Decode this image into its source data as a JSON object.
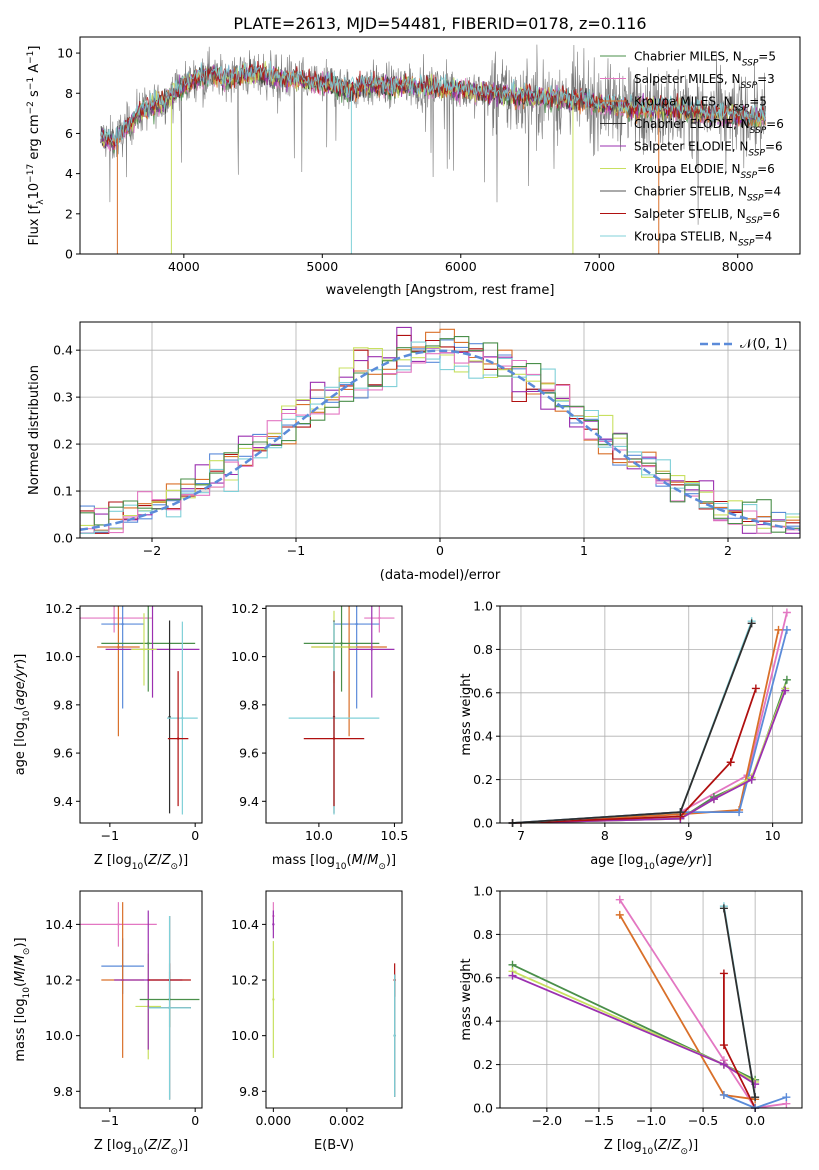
{
  "title": "PLATE=2613, MJD=54481, FIBERID=0178, z=0.116",
  "colors": {
    "chab_miles": "#4a8f4a",
    "salp_miles": "#e377c2",
    "krou_miles": "#d9702a",
    "chab_elodie": "#2f2f2f",
    "salp_elodie": "#9b30b0",
    "krou_elodie": "#c8e060",
    "chab_stelib": "#555555",
    "salp_stelib": "#b01010",
    "krou_stelib": "#80d0d8",
    "blue": "#5b8bd9"
  },
  "chart_data": [
    {
      "id": "spectrum",
      "type": "line",
      "xlabel": "wavelength [Angstrom, rest frame]",
      "ylabel": "Flux [f_λ 10^-17 erg cm^-2 s^-1 A^-1]",
      "xlim": [
        3250,
        8450
      ],
      "ylim": [
        0,
        10.8
      ],
      "xticks": [
        "4000",
        "5000",
        "6000",
        "7000",
        "8000"
      ],
      "yticks": [
        "0",
        "2",
        "4",
        "6",
        "8",
        "10"
      ],
      "grid": false,
      "legend": "top-right",
      "series": [
        {
          "key": "chab_miles",
          "name": "Chabrier MILES, N_SSP=5"
        },
        {
          "key": "salp_miles",
          "name": "Salpeter MILES, N_SSP=3"
        },
        {
          "key": "krou_miles",
          "name": "Kroupa MILES, N_SSP=5"
        },
        {
          "key": "chab_elodie",
          "name": "Chabrier ELODIE, N_SSP=6"
        },
        {
          "key": "salp_elodie",
          "name": "Salpeter ELODIE, N_SSP=6"
        },
        {
          "key": "krou_elodie",
          "name": "Kroupa ELODIE, N_SSP=6"
        },
        {
          "key": "chab_stelib",
          "name": "Chabrier STELIB, N_SSP=4"
        },
        {
          "key": "salp_stelib",
          "name": "Salpeter STELIB, N_SSP=6"
        },
        {
          "key": "krou_stelib",
          "name": "Kroupa STELIB, N_SSP=4"
        }
      ],
      "continuum": [
        [
          3400,
          5.8
        ],
        [
          3500,
          5.6
        ],
        [
          3600,
          6.4
        ],
        [
          3700,
          7.2
        ],
        [
          3800,
          7.4
        ],
        [
          3900,
          7.8
        ],
        [
          4000,
          8.4
        ],
        [
          4100,
          8.8
        ],
        [
          4200,
          9.0
        ],
        [
          4300,
          8.7
        ],
        [
          4400,
          8.9
        ],
        [
          4500,
          9.0
        ],
        [
          4600,
          8.9
        ],
        [
          4700,
          8.7
        ],
        [
          4800,
          8.8
        ],
        [
          4900,
          8.5
        ],
        [
          5000,
          8.5
        ],
        [
          5100,
          8.4
        ],
        [
          5200,
          8.1
        ],
        [
          5300,
          8.4
        ],
        [
          5400,
          8.4
        ],
        [
          5500,
          8.3
        ],
        [
          5600,
          8.4
        ],
        [
          5800,
          8.3
        ],
        [
          6000,
          8.2
        ],
        [
          6200,
          8.0
        ],
        [
          6400,
          7.9
        ],
        [
          6600,
          7.8
        ],
        [
          6800,
          7.7
        ],
        [
          7000,
          7.5
        ],
        [
          7200,
          7.3
        ],
        [
          7400,
          7.3
        ],
        [
          7600,
          7.2
        ],
        [
          7800,
          7.0
        ],
        [
          8000,
          6.9
        ],
        [
          8200,
          6.8
        ]
      ],
      "dips": [
        {
          "x": 3520,
          "to": 0,
          "key": "krou_miles"
        },
        {
          "x": 3910,
          "to": 0,
          "key": "krou_elodie"
        },
        {
          "x": 5210,
          "to": 0,
          "key": "krou_stelib"
        },
        {
          "x": 6810,
          "to": 0,
          "key": "krou_elodie"
        },
        {
          "x": 7430,
          "to": 0,
          "key": "krou_miles"
        }
      ]
    },
    {
      "id": "residuals",
      "type": "histogram",
      "xlabel": "(data-model)/error",
      "ylabel": "Normed distribution",
      "xlim": [
        -2.5,
        2.5
      ],
      "ylim": [
        0,
        0.46
      ],
      "xticks": [
        "−2",
        "−1",
        "0",
        "1",
        "2"
      ],
      "yticks": [
        "0.0",
        "0.1",
        "0.2",
        "0.3",
        "0.4"
      ],
      "grid": true,
      "legend": "top-right",
      "legend_label": "𝒩(0, 1)",
      "bin_width": 0.1,
      "series_keys": [
        "blue",
        "krou_miles",
        "salp_stelib",
        "salp_elodie",
        "krou_elodie",
        "krou_stelib",
        "salp_miles",
        "chab_miles"
      ]
    },
    {
      "id": "age_vs_Z",
      "type": "scatter",
      "xlabel": "Z [log10(Z/Z⊙)]",
      "ylabel": "age  [log10(age/yr)]",
      "xlim": [
        -1.35,
        0.08
      ],
      "ylim": [
        9.31,
        10.21
      ],
      "xticks": [
        {
          "v": -1,
          "t": "−1"
        },
        {
          "v": 0,
          "t": "0"
        }
      ],
      "yticks": [
        {
          "v": 9.4,
          "t": "9.4"
        },
        {
          "v": 9.6,
          "t": "9.6"
        },
        {
          "v": 9.8,
          "t": "9.8"
        },
        {
          "v": 10.0,
          "t": "10.0"
        },
        {
          "v": 10.2,
          "t": "10.2"
        }
      ],
      "points": [
        {
          "key": "salp_miles",
          "x": -0.95,
          "y": 10.16,
          "ex": 0.45,
          "ey": 0.06
        },
        {
          "key": "blue",
          "x": -0.85,
          "y": 10.135,
          "ex": 0.25,
          "ey": 0.35
        },
        {
          "key": "krou_miles",
          "x": -0.9,
          "y": 10.04,
          "ex": 0.25,
          "ey": 0.37
        },
        {
          "key": "chab_miles",
          "x": -0.55,
          "y": 10.055,
          "ex": 0.55,
          "ey": 0.2
        },
        {
          "key": "salp_elodie",
          "x": -0.5,
          "y": 10.03,
          "ex": 0.55,
          "ey": 0.2
        },
        {
          "key": "krou_elodie",
          "x": -0.6,
          "y": 10.03,
          "ex": 0.15,
          "ey": 0.15
        },
        {
          "key": "chab_elodie",
          "x": -0.3,
          "y": 9.75,
          "ex": 0.0,
          "ey": 0.4
        },
        {
          "key": "krou_stelib",
          "x": -0.15,
          "y": 9.745,
          "ex": 0.18,
          "ey": 0.4
        },
        {
          "key": "salp_stelib",
          "x": -0.2,
          "y": 9.66,
          "ex": 0.12,
          "ey": 0.28
        }
      ]
    },
    {
      "id": "age_vs_mass",
      "type": "scatter",
      "xlabel": "mass [log10(M/M⊙)]",
      "ylabel": "",
      "xlim": [
        9.65,
        10.55
      ],
      "ylim": [
        9.31,
        10.21
      ],
      "xticks": [
        {
          "v": 10.0,
          "t": "10.0"
        },
        {
          "v": 10.5,
          "t": "10.5"
        }
      ],
      "yticks": [
        {
          "v": 9.4,
          "t": "9.4"
        },
        {
          "v": 9.6,
          "t": "9.6"
        },
        {
          "v": 9.8,
          "t": "9.8"
        },
        {
          "v": 10.0,
          "t": "10.0"
        },
        {
          "v": 10.2,
          "t": "10.2"
        }
      ],
      "points": [
        {
          "key": "salp_miles",
          "x": 10.4,
          "y": 10.16,
          "ex": 0.1,
          "ey": 0.06
        },
        {
          "key": "blue",
          "x": 10.25,
          "y": 10.135,
          "ex": 0.15,
          "ey": 0.35
        },
        {
          "key": "krou_miles",
          "x": 10.2,
          "y": 10.04,
          "ex": 0.25,
          "ey": 0.37
        },
        {
          "key": "chab_miles",
          "x": 10.15,
          "y": 10.055,
          "ex": 0.25,
          "ey": 0.2
        },
        {
          "key": "salp_elodie",
          "x": 10.35,
          "y": 10.03,
          "ex": 0.15,
          "ey": 0.2
        },
        {
          "key": "krou_elodie",
          "x": 10.1,
          "y": 10.04,
          "ex": 0.15,
          "ey": 0.15
        },
        {
          "key": "chab_elodie",
          "x": 10.1,
          "y": 9.75,
          "ex": 0.0,
          "ey": 0.4
        },
        {
          "key": "krou_stelib",
          "x": 10.1,
          "y": 9.745,
          "ex": 0.3,
          "ey": 0.4
        },
        {
          "key": "salp_stelib",
          "x": 10.1,
          "y": 9.66,
          "ex": 0.2,
          "ey": 0.28
        }
      ]
    },
    {
      "id": "weight_vs_age",
      "type": "line",
      "xlabel": "age  [log10(age/yr)]",
      "ylabel": "mass weight",
      "xlim": [
        6.75,
        10.35
      ],
      "ylim": [
        0,
        1.0
      ],
      "xticks": [
        {
          "v": 7,
          "t": "7"
        },
        {
          "v": 8,
          "t": "8"
        },
        {
          "v": 9,
          "t": "9"
        },
        {
          "v": 10,
          "t": "10"
        }
      ],
      "yticks": [
        {
          "v": 0,
          "t": "0.0"
        },
        {
          "v": 0.2,
          "t": "0.2"
        },
        {
          "v": 0.4,
          "t": "0.4"
        },
        {
          "v": 0.6,
          "t": "0.6"
        },
        {
          "v": 0.8,
          "t": "0.8"
        },
        {
          "v": 1.0,
          "t": "1.0"
        }
      ],
      "grid": true,
      "series": [
        {
          "key": "salp_miles",
          "x": [
            6.9,
            8.9,
            9.7,
            10.17
          ],
          "y": [
            0.0,
            0.05,
            0.22,
            0.97
          ]
        },
        {
          "key": "krou_miles",
          "x": [
            6.9,
            8.9,
            9.6,
            10.07
          ],
          "y": [
            0.0,
            0.04,
            0.06,
            0.89
          ]
        },
        {
          "key": "blue",
          "x": [
            6.9,
            8.9,
            9.6,
            10.17
          ],
          "y": [
            0.0,
            0.05,
            0.05,
            0.89
          ]
        },
        {
          "key": "chab_miles",
          "x": [
            6.9,
            8.9,
            9.3,
            9.75,
            10.17
          ],
          "y": [
            0.0,
            0.02,
            0.12,
            0.2,
            0.66
          ]
        },
        {
          "key": "krou_elodie",
          "x": [
            6.9,
            8.9,
            9.3,
            9.75,
            10.15
          ],
          "y": [
            0.0,
            0.02,
            0.11,
            0.21,
            0.62
          ]
        },
        {
          "key": "salp_elodie",
          "x": [
            6.9,
            8.9,
            9.3,
            9.75,
            10.15
          ],
          "y": [
            0.0,
            0.02,
            0.11,
            0.2,
            0.61
          ]
        },
        {
          "key": "salp_stelib",
          "x": [
            6.9,
            8.9,
            9.5,
            9.8
          ],
          "y": [
            0.0,
            0.03,
            0.28,
            0.62
          ]
        },
        {
          "key": "krou_stelib",
          "x": [
            6.9,
            8.9,
            9.75
          ],
          "y": [
            0.0,
            0.05,
            0.93
          ]
        },
        {
          "key": "chab_elodie",
          "x": [
            6.9,
            8.9,
            9.75
          ],
          "y": [
            0.0,
            0.05,
            0.92
          ]
        }
      ]
    },
    {
      "id": "mass_vs_Z",
      "type": "scatter",
      "xlabel": "Z [log10(Z/Z⊙)]",
      "ylabel": "mass [log10(M/M⊙)]",
      "xlim": [
        -1.35,
        0.08
      ],
      "ylim": [
        9.74,
        10.52
      ],
      "xticks": [
        {
          "v": -1,
          "t": "−1"
        },
        {
          "v": 0,
          "t": "0"
        }
      ],
      "yticks": [
        {
          "v": 9.8,
          "t": "9.8"
        },
        {
          "v": 10.0,
          "t": "10.0"
        },
        {
          "v": 10.2,
          "t": "10.2"
        },
        {
          "v": 10.4,
          "t": "10.4"
        }
      ],
      "points": [
        {
          "key": "salp_miles",
          "x": -0.9,
          "y": 10.4,
          "ex": 0.45,
          "ey": 0.08
        },
        {
          "key": "blue",
          "x": -0.85,
          "y": 10.25,
          "ex": 0.25,
          "ey": 0.1
        },
        {
          "key": "krou_miles",
          "x": -0.85,
          "y": 10.2,
          "ex": 0.25,
          "ey": 0.28
        },
        {
          "key": "krou_elodie",
          "x": -0.55,
          "y": 10.105,
          "ex": 0.15,
          "ey": 0.19
        },
        {
          "key": "salp_elodie",
          "x": -0.55,
          "y": 10.2,
          "ex": 0.4,
          "ey": 0.25
        },
        {
          "key": "chab_miles",
          "x": -0.3,
          "y": 10.13,
          "ex": 0.35,
          "ey": 0.1
        },
        {
          "key": "salp_stelib",
          "x": -0.3,
          "y": 10.2,
          "ex": 0.25,
          "ey": 0.06
        },
        {
          "key": "chab_elodie",
          "x": -0.3,
          "y": 10.1,
          "ex": 0.25,
          "ey": 0.33
        },
        {
          "key": "krou_stelib",
          "x": -0.3,
          "y": 10.1,
          "ex": 0.25,
          "ey": 0.33
        }
      ]
    },
    {
      "id": "mass_vs_ebv",
      "type": "scatter",
      "xlabel": "E(B-V)",
      "ylabel": "",
      "xlim": [
        -0.0002,
        0.0035
      ],
      "ylim": [
        9.74,
        10.52
      ],
      "xticks": [
        {
          "v": 0,
          "t": "0.000"
        },
        {
          "v": 0.002,
          "t": "0.002"
        }
      ],
      "yticks": [
        {
          "v": 9.8,
          "t": "9.8"
        },
        {
          "v": 10.0,
          "t": "10.0"
        },
        {
          "v": 10.2,
          "t": "10.2"
        },
        {
          "v": 10.4,
          "t": "10.4"
        }
      ],
      "points": [
        {
          "key": "salp_miles",
          "x": 0.0,
          "y": 10.43,
          "ex": 0,
          "ey": 0.05
        },
        {
          "key": "salp_elodie",
          "x": 0.0,
          "y": 10.4,
          "ex": 0,
          "ey": 0.05
        },
        {
          "key": "krou_elodie",
          "x": 0.0,
          "y": 10.13,
          "ex": 0,
          "ey": 0.21
        },
        {
          "key": "salp_stelib",
          "x": 0.0033,
          "y": 10.2,
          "ex": 0,
          "ey": 0.06
        },
        {
          "key": "chab_elodie",
          "x": 0.0033,
          "y": 10.0,
          "ex": 0,
          "ey": 0.22
        },
        {
          "key": "krou_stelib",
          "x": 0.0033,
          "y": 10.0,
          "ex": 0,
          "ey": 0.22
        }
      ]
    },
    {
      "id": "weight_vs_Z",
      "type": "line",
      "xlabel": "Z [log10(Z/Z⊙)]",
      "ylabel": "mass weight",
      "xlim": [
        -2.45,
        0.45
      ],
      "ylim": [
        0,
        1.0
      ],
      "xticks": [
        {
          "v": -2.0,
          "t": "−2.0"
        },
        {
          "v": -1.5,
          "t": "−1.5"
        },
        {
          "v": -1.0,
          "t": "−1.0"
        },
        {
          "v": -0.5,
          "t": "−0.5"
        },
        {
          "v": 0.0,
          "t": "0.0"
        }
      ],
      "yticks": [
        {
          "v": 0,
          "t": "0.0"
        },
        {
          "v": 0.2,
          "t": "0.2"
        },
        {
          "v": 0.4,
          "t": "0.4"
        },
        {
          "v": 0.6,
          "t": "0.6"
        },
        {
          "v": 0.8,
          "t": "0.8"
        },
        {
          "v": 1.0,
          "t": "1.0"
        }
      ],
      "grid": true,
      "series": [
        {
          "key": "salp_miles",
          "x": [
            -1.3,
            -0.3,
            0.0,
            0.3
          ],
          "y": [
            0.96,
            0.22,
            0.0,
            0.02
          ]
        },
        {
          "key": "krou_miles",
          "x": [
            -1.3,
            -0.3,
            0.0
          ],
          "y": [
            0.89,
            0.06,
            0.04
          ]
        },
        {
          "key": "chab_miles",
          "x": [
            -2.33,
            -0.3,
            0.0
          ],
          "y": [
            0.66,
            0.2,
            0.13
          ]
        },
        {
          "key": "krou_elodie",
          "x": [
            -2.33,
            -0.3,
            0.0
          ],
          "y": [
            0.63,
            0.2,
            0.12
          ]
        },
        {
          "key": "salp_elodie",
          "x": [
            -2.33,
            -0.3,
            0.0
          ],
          "y": [
            0.61,
            0.2,
            0.11
          ]
        },
        {
          "key": "salp_stelib",
          "x": [
            -0.3,
            -0.3,
            0.0
          ],
          "y": [
            0.62,
            0.29,
            0.0
          ]
        },
        {
          "key": "krou_stelib",
          "x": [
            -0.3,
            0.0
          ],
          "y": [
            0.93,
            0.05
          ]
        },
        {
          "key": "chab_elodie",
          "x": [
            -0.3,
            0.0
          ],
          "y": [
            0.92,
            0.05
          ]
        },
        {
          "key": "blue",
          "x": [
            -0.3,
            0.0,
            0.3
          ],
          "y": [
            0.06,
            0.0,
            0.05
          ]
        }
      ]
    }
  ]
}
